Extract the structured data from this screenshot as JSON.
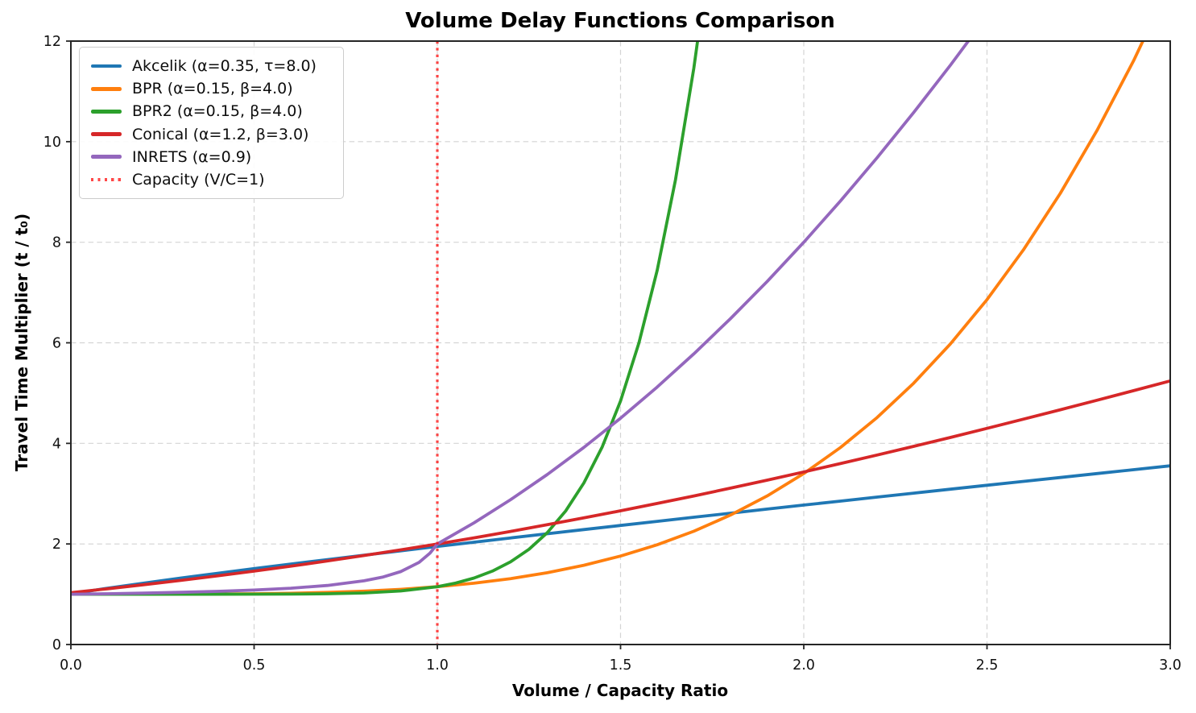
{
  "chart_data": {
    "type": "line",
    "title": "Volume Delay Functions Comparison",
    "xlabel": "Volume / Capacity Ratio",
    "ylabel": "Travel Time Multiplier (t / t₀)",
    "xlim": [
      0.0,
      3.0
    ],
    "ylim": [
      0,
      12
    ],
    "xtick_values": [
      0.0,
      0.5,
      1.0,
      1.5,
      2.0,
      2.5,
      3.0
    ],
    "xtick_labels": [
      "0.0",
      "0.5",
      "1.0",
      "1.5",
      "2.0",
      "2.5",
      "3.0"
    ],
    "ytick_values": [
      0,
      2,
      4,
      6,
      8,
      10,
      12
    ],
    "ytick_labels": [
      "0",
      "2",
      "4",
      "6",
      "8",
      "10",
      "12"
    ],
    "grid": true,
    "legend_position": "upper-left",
    "axis_color": "#262626",
    "grid_color": "#d4d4d4",
    "series": [
      {
        "key": "akcelik",
        "name": "Akcelik (α=0.35, τ=8.0)",
        "color": "#1f77b4",
        "points": [
          [
            0,
            1.0
          ],
          [
            0.05,
            1.064
          ],
          [
            0.1,
            1.12
          ],
          [
            0.2,
            1.223
          ],
          [
            0.3,
            1.321
          ],
          [
            0.4,
            1.417
          ],
          [
            0.5,
            1.509
          ],
          [
            0.6,
            1.6
          ],
          [
            0.7,
            1.689
          ],
          [
            0.8,
            1.777
          ],
          [
            0.9,
            1.864
          ],
          [
            1.0,
            1.95
          ],
          [
            1.1,
            2.035
          ],
          [
            1.2,
            2.119
          ],
          [
            1.3,
            2.203
          ],
          [
            1.4,
            2.286
          ],
          [
            1.5,
            2.368
          ],
          [
            1.6,
            2.45
          ],
          [
            1.7,
            2.532
          ],
          [
            1.8,
            2.612
          ],
          [
            1.9,
            2.693
          ],
          [
            2.0,
            2.773
          ],
          [
            2.1,
            2.852
          ],
          [
            2.2,
            2.932
          ],
          [
            2.3,
            3.01
          ],
          [
            2.4,
            3.089
          ],
          [
            2.5,
            3.167
          ],
          [
            2.6,
            3.245
          ],
          [
            2.7,
            3.322
          ],
          [
            2.8,
            3.399
          ],
          [
            2.9,
            3.477
          ],
          [
            3.0,
            3.553
          ]
        ]
      },
      {
        "key": "bpr",
        "name": "BPR (α=0.15, β=4.0)",
        "color": "#ff7f0e",
        "points": [
          [
            0,
            1.0
          ],
          [
            0.2,
            1.0
          ],
          [
            0.4,
            1.004
          ],
          [
            0.5,
            1.009
          ],
          [
            0.6,
            1.019
          ],
          [
            0.7,
            1.036
          ],
          [
            0.8,
            1.061
          ],
          [
            0.9,
            1.098
          ],
          [
            1.0,
            1.15
          ],
          [
            1.1,
            1.22
          ],
          [
            1.2,
            1.311
          ],
          [
            1.3,
            1.428
          ],
          [
            1.4,
            1.576
          ],
          [
            1.5,
            1.759
          ],
          [
            1.6,
            1.983
          ],
          [
            1.7,
            2.253
          ],
          [
            1.8,
            2.575
          ],
          [
            1.9,
            2.955
          ],
          [
            2.0,
            3.4
          ],
          [
            2.1,
            3.917
          ],
          [
            2.2,
            4.514
          ],
          [
            2.3,
            5.198
          ],
          [
            2.4,
            5.977
          ],
          [
            2.5,
            6.859
          ],
          [
            2.6,
            7.855
          ],
          [
            2.7,
            8.972
          ],
          [
            2.8,
            10.22
          ],
          [
            2.9,
            11.609
          ],
          [
            3.0,
            13.15
          ]
        ]
      },
      {
        "key": "bpr2",
        "name": "BPR2 (α=0.15, β=4.0)",
        "color": "#2ca02c",
        "points": [
          [
            0,
            1.0
          ],
          [
            0.3,
            1.0
          ],
          [
            0.5,
            1.001
          ],
          [
            0.6,
            1.003
          ],
          [
            0.7,
            1.009
          ],
          [
            0.8,
            1.025
          ],
          [
            0.9,
            1.065
          ],
          [
            1.0,
            1.15
          ],
          [
            1.05,
            1.222
          ],
          [
            1.1,
            1.322
          ],
          [
            1.15,
            1.459
          ],
          [
            1.2,
            1.645
          ],
          [
            1.25,
            1.894
          ],
          [
            1.3,
            2.224
          ],
          [
            1.35,
            2.655
          ],
          [
            1.4,
            3.214
          ],
          [
            1.45,
            3.931
          ],
          [
            1.5,
            4.844
          ],
          [
            1.55,
            5.997
          ],
          [
            1.6,
            7.442
          ],
          [
            1.65,
            9.241
          ],
          [
            1.7,
            11.464
          ],
          [
            1.73,
            13.04
          ]
        ]
      },
      {
        "key": "conical",
        "name": "Conical (α=1.2, β=3.0)",
        "color": "#d62728",
        "points": [
          [
            0,
            1.031
          ],
          [
            0.1,
            1.108
          ],
          [
            0.2,
            1.19
          ],
          [
            0.3,
            1.275
          ],
          [
            0.4,
            1.365
          ],
          [
            0.5,
            1.459
          ],
          [
            0.6,
            1.558
          ],
          [
            0.7,
            1.662
          ],
          [
            0.8,
            1.77
          ],
          [
            0.9,
            1.882
          ],
          [
            1.0,
            2.0
          ],
          [
            1.1,
            2.122
          ],
          [
            1.2,
            2.25
          ],
          [
            1.3,
            2.382
          ],
          [
            1.4,
            2.518
          ],
          [
            1.5,
            2.659
          ],
          [
            1.6,
            2.805
          ],
          [
            1.7,
            2.955
          ],
          [
            1.8,
            3.11
          ],
          [
            1.9,
            3.269
          ],
          [
            2.0,
            3.431
          ],
          [
            2.1,
            3.598
          ],
          [
            2.2,
            3.768
          ],
          [
            2.3,
            3.941
          ],
          [
            2.4,
            4.118
          ],
          [
            2.5,
            4.299
          ],
          [
            2.6,
            4.482
          ],
          [
            2.7,
            4.668
          ],
          [
            2.8,
            4.857
          ],
          [
            2.9,
            5.048
          ],
          [
            3.0,
            5.242
          ]
        ]
      },
      {
        "key": "inrets",
        "name": "INRETS (α=0.9)",
        "color": "#9467bd",
        "points": [
          [
            0,
            1.0
          ],
          [
            0.1,
            1.01
          ],
          [
            0.2,
            1.022
          ],
          [
            0.3,
            1.038
          ],
          [
            0.4,
            1.057
          ],
          [
            0.5,
            1.083
          ],
          [
            0.6,
            1.12
          ],
          [
            0.7,
            1.175
          ],
          [
            0.8,
            1.267
          ],
          [
            0.85,
            1.34
          ],
          [
            0.9,
            1.45
          ],
          [
            0.95,
            1.633
          ],
          [
            0.98,
            1.817
          ],
          [
            1.0,
            2.0
          ],
          [
            1.1,
            2.42
          ],
          [
            1.2,
            2.88
          ],
          [
            1.3,
            3.38
          ],
          [
            1.4,
            3.92
          ],
          [
            1.5,
            4.5
          ],
          [
            1.6,
            5.12
          ],
          [
            1.7,
            5.78
          ],
          [
            1.8,
            6.48
          ],
          [
            1.9,
            7.22
          ],
          [
            2.0,
            8.0
          ],
          [
            2.1,
            8.82
          ],
          [
            2.2,
            9.68
          ],
          [
            2.3,
            10.58
          ],
          [
            2.4,
            11.52
          ],
          [
            2.5,
            12.5
          ]
        ]
      }
    ],
    "capacity_line": {
      "key": "capacity",
      "x": 1.0,
      "name": "Capacity (V/C=1)",
      "color": "#ff0000",
      "style": "dotted"
    }
  }
}
